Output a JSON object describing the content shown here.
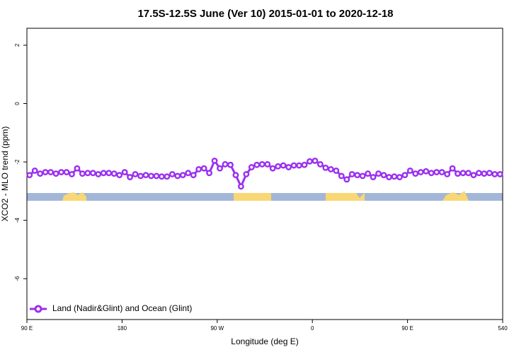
{
  "chart_data": {
    "type": "line",
    "title": "17.5S-12.5S June (Ver 10)   2015-01-01 to 2020-12-18",
    "x_label": "Longitude (deg E)",
    "y_label": "XCO2 - MLO trend (ppm)",
    "x": [
      92.5,
      97.5,
      102.5,
      107.5,
      112.5,
      117.5,
      122.5,
      127.5,
      132.5,
      137.5,
      142.5,
      147.5,
      152.5,
      157.5,
      162.5,
      167.5,
      172.5,
      177.5,
      182.5,
      187.5,
      192.5,
      197.5,
      202.5,
      207.5,
      212.5,
      217.5,
      222.5,
      227.5,
      232.5,
      237.5,
      242.5,
      247.5,
      252.5,
      257.5,
      262.5,
      267.5,
      272.5,
      277.5,
      282.5,
      287.5,
      292.5,
      297.5,
      302.5,
      307.5,
      312.5,
      317.5,
      322.5,
      327.5,
      332.5,
      337.5,
      342.5,
      347.5,
      352.5,
      357.5,
      362.5,
      367.5,
      372.5,
      377.5,
      382.5,
      387.5,
      392.5,
      397.5,
      402.5,
      407.5,
      412.5,
      417.5,
      422.5,
      427.5,
      432.5,
      437.5,
      442.5,
      447.5,
      452.5,
      457.5,
      462.5,
      467.5,
      472.5,
      477.5,
      482.5,
      487.5,
      492.5,
      497.5,
      502.5,
      507.5,
      512.5,
      517.5,
      522.5,
      527.5,
      532.5,
      537.5
    ],
    "series": [
      {
        "name": "Land (Nadir&Glint) and Ocean (Glint)",
        "color": "#9b30f0",
        "values": [
          -2.45,
          -2.3,
          -2.4,
          -2.35,
          -2.35,
          -2.4,
          -2.35,
          -2.35,
          -2.42,
          -2.22,
          -2.4,
          -2.38,
          -2.38,
          -2.42,
          -2.38,
          -2.38,
          -2.4,
          -2.45,
          -2.35,
          -2.52,
          -2.42,
          -2.48,
          -2.45,
          -2.48,
          -2.48,
          -2.5,
          -2.5,
          -2.42,
          -2.48,
          -2.45,
          -2.38,
          -2.45,
          -2.25,
          -2.22,
          -2.38,
          -1.96,
          -2.22,
          -2.08,
          -2.1,
          -2.45,
          -2.84,
          -2.42,
          -2.18,
          -2.1,
          -2.08,
          -2.08,
          -2.22,
          -2.15,
          -2.12,
          -2.18,
          -2.12,
          -2.12,
          -2.1,
          -1.98,
          -1.96,
          -2.08,
          -2.2,
          -2.25,
          -2.3,
          -2.48,
          -2.6,
          -2.42,
          -2.45,
          -2.48,
          -2.4,
          -2.52,
          -2.4,
          -2.45,
          -2.52,
          -2.5,
          -2.52,
          -2.45,
          -2.3,
          -2.4,
          -2.35,
          -2.32,
          -2.38,
          -2.35,
          -2.35,
          -2.42,
          -2.22,
          -2.4,
          -2.38,
          -2.38,
          -2.45,
          -2.38,
          -2.4,
          -2.38,
          -2.42,
          -2.42
        ]
      }
    ],
    "xlim": [
      90,
      540
    ],
    "xticks": [
      {
        "value": 90,
        "label": "90 E"
      },
      180,
      {
        "value": 270,
        "label": "90 W"
      },
      {
        "value": 360,
        "label": "0"
      },
      {
        "value": 450,
        "label": "90 E"
      },
      540
    ],
    "ylim": [
      -7.4,
      2.58
    ],
    "yticks": [
      2,
      0,
      -2,
      -4,
      -6
    ],
    "legend": "bottom-left"
  }
}
